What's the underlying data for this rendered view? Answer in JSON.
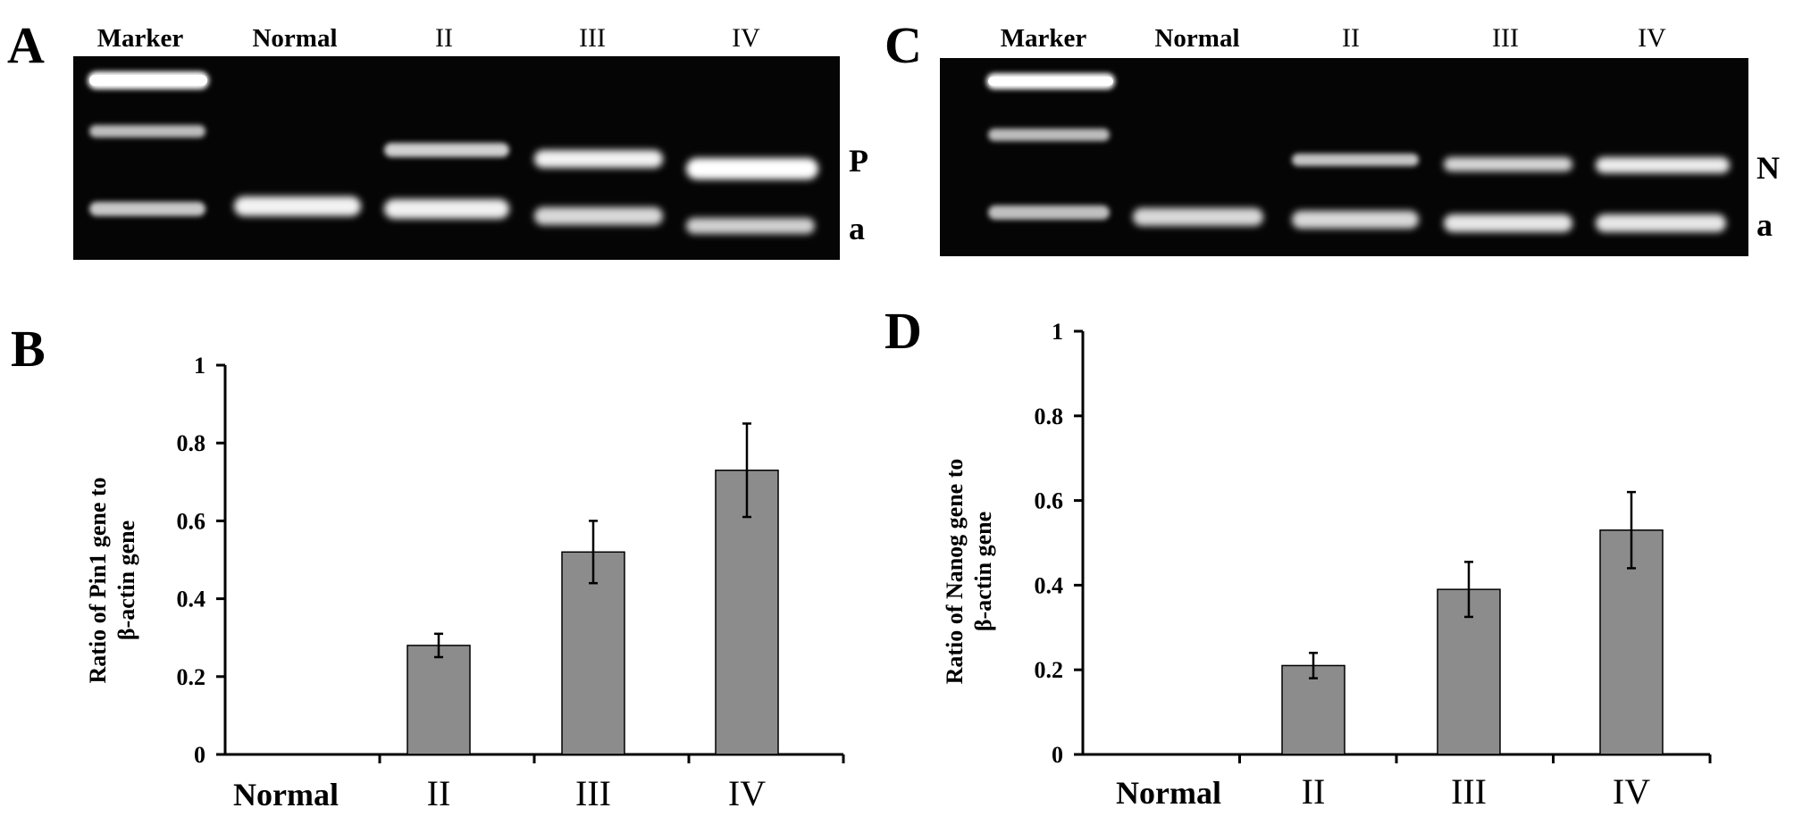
{
  "gels": [
    {
      "panel": "A",
      "lanes": [
        "Marker",
        "Normal",
        "II",
        "III",
        "IV"
      ],
      "band_labels": [
        "P",
        "a"
      ]
    },
    {
      "panel": "C",
      "lanes": [
        "Marker",
        "Normal",
        "II",
        "III",
        "IV"
      ],
      "band_labels": [
        "N",
        "a"
      ]
    }
  ],
  "chart_data": [
    {
      "panel": "B",
      "type": "bar",
      "categories": [
        "Normal",
        "II",
        "III",
        "IV"
      ],
      "values": [
        0,
        0.28,
        0.52,
        0.73
      ],
      "errors": [
        0,
        0.03,
        0.08,
        0.12
      ],
      "ylabel_lines": [
        "Ratio of Pin1 gene to",
        "β-actin gene"
      ],
      "ylim": [
        0,
        1
      ],
      "yticks": [
        "0",
        "0.2",
        "0.4",
        "0.6",
        "0.8",
        "1"
      ],
      "bar_color": "#8c8c8c",
      "grid": false
    },
    {
      "panel": "D",
      "type": "bar",
      "categories": [
        "Normal",
        "II",
        "III",
        "IV"
      ],
      "values": [
        0,
        0.21,
        0.39,
        0.53
      ],
      "errors": [
        0,
        0.03,
        0.065,
        0.09
      ],
      "ylabel_lines": [
        "Ratio of Nanog gene to",
        "β-actin gene"
      ],
      "ylim": [
        0,
        1
      ],
      "yticks": [
        "0",
        "0.2",
        "0.4",
        "0.6",
        "0.8",
        "1"
      ],
      "bar_color": "#8c8c8c",
      "grid": false
    }
  ]
}
